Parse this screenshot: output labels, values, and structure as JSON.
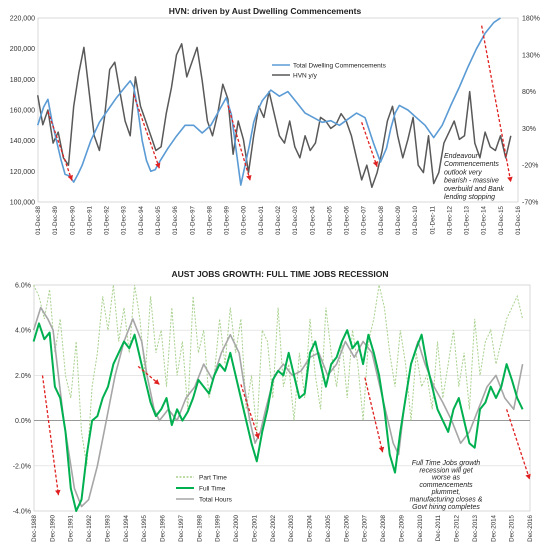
{
  "colors": {
    "dwelling": "#5b9bd5",
    "hvn": "#595959",
    "part_time": "#a9d18e",
    "full_time": "#00b050",
    "total_hours": "#a6a6a6",
    "arrow": "#e02020"
  },
  "chart_data": [
    {
      "type": "line",
      "title": "HVN: driven by Aust Dwelling Commencements",
      "ylim": [
        100000,
        220000
      ],
      "y_ticks": [
        "100,000",
        "120,000",
        "140,000",
        "160,000",
        "180,000",
        "200,000",
        "220,000"
      ],
      "y2lim": [
        -70,
        180
      ],
      "y2_ticks": [
        "-70%",
        "-20%",
        "30%",
        "80%",
        "130%",
        "180%"
      ],
      "x_ticks": [
        "01-Dec-88",
        "01-Dec-89",
        "01-Dec-90",
        "01-Dec-91",
        "01-Dec-92",
        "01-Dec-93",
        "01-Dec-94",
        "01-Dec-95",
        "01-Dec-96",
        "01-Dec-97",
        "01-Dec-98",
        "01-Dec-99",
        "01-Dec-00",
        "01-Dec-01",
        "01-Dec-02",
        "01-Dec-03",
        "01-Dec-04",
        "01-Dec-05",
        "01-Dec-06",
        "01-Dec-07",
        "01-Dec-08",
        "01-Dec-09",
        "01-Dec-10",
        "01-Dec-11",
        "01-Dec-12",
        "01-Dec-13",
        "01-Dec-14",
        "01-Dec-15",
        "01-Dec-16"
      ],
      "x_range": [
        1988.92,
        1988.92,
        2016.92
      ],
      "legend": "top-center",
      "series": [
        {
          "name": "Total Dwelling Commencements",
          "axis": "left",
          "x": [
            1988.9,
            1989.25,
            1989.5,
            1989.75,
            1990.0,
            1990.25,
            1990.5,
            1990.75,
            1991.0,
            1991.25,
            1991.5,
            1991.75,
            1992.0,
            1992.5,
            1993.0,
            1993.5,
            1994.0,
            1994.3,
            1994.5,
            1994.75,
            1995.0,
            1995.25,
            1995.5,
            1995.75,
            1996.0,
            1996.5,
            1997.0,
            1997.5,
            1998.0,
            1998.5,
            1999.0,
            1999.5,
            1999.9,
            2000.2,
            2000.5,
            2000.75,
            2001.0,
            2001.25,
            2001.5,
            2001.75,
            2002.0,
            2002.5,
            2003.0,
            2003.5,
            2004.0,
            2004.5,
            2005.0,
            2005.5,
            2006.0,
            2006.5,
            2007.0,
            2007.5,
            2008.0,
            2008.5,
            2008.9,
            2009.25,
            2009.5,
            2009.75,
            2010.0,
            2010.5,
            2011.0,
            2011.5,
            2012.0,
            2012.5,
            2013.0,
            2013.5,
            2014.0,
            2014.5,
            2015.0,
            2015.5,
            2015.9
          ],
          "values": [
            150000,
            162000,
            167000,
            152000,
            140000,
            128000,
            118000,
            117000,
            113000,
            118000,
            124000,
            132000,
            140000,
            152000,
            160000,
            168000,
            175000,
            179000,
            175000,
            160000,
            140000,
            127000,
            120000,
            121000,
            126000,
            135000,
            143000,
            150000,
            150000,
            145000,
            150000,
            160000,
            168000,
            157000,
            132000,
            111000,
            124000,
            137000,
            152000,
            160000,
            166000,
            173000,
            169000,
            172000,
            165000,
            158000,
            155000,
            152000,
            153000,
            150000,
            154000,
            158000,
            155000,
            138000,
            126000,
            135000,
            148000,
            158000,
            163000,
            160000,
            155000,
            150000,
            142000,
            150000,
            163000,
            175000,
            188000,
            200000,
            210000,
            217000,
            220000
          ]
        },
        {
          "name": "HVN y/y",
          "axis": "right",
          "x": [
            1988.9,
            1989.2,
            1989.5,
            1989.8,
            1990.1,
            1990.4,
            1990.7,
            1991.0,
            1991.3,
            1991.6,
            1991.9,
            1992.2,
            1992.5,
            1992.8,
            1993.1,
            1993.4,
            1993.7,
            1994.0,
            1994.3,
            1994.6,
            1994.9,
            1995.2,
            1995.5,
            1995.8,
            1996.1,
            1996.4,
            1996.7,
            1997.0,
            1997.3,
            1997.6,
            1997.9,
            1998.2,
            1998.5,
            1998.8,
            1999.1,
            1999.4,
            1999.7,
            2000.0,
            2000.3,
            2000.6,
            2000.9,
            2001.2,
            2001.5,
            2001.8,
            2002.1,
            2002.4,
            2002.7,
            2003.0,
            2003.3,
            2003.6,
            2003.9,
            2004.2,
            2004.5,
            2004.8,
            2005.1,
            2005.4,
            2005.7,
            2006.0,
            2006.3,
            2006.6,
            2006.9,
            2007.2,
            2007.5,
            2007.8,
            2008.1,
            2008.4,
            2008.7,
            2009.0,
            2009.3,
            2009.6,
            2009.9,
            2010.2,
            2010.5,
            2010.8,
            2011.1,
            2011.4,
            2011.7,
            2012.0,
            2012.3,
            2012.6,
            2012.9,
            2013.2,
            2013.5,
            2013.8,
            2014.1,
            2014.4,
            2014.7,
            2015.0,
            2015.3,
            2015.6,
            2015.9,
            2016.2,
            2016.5
          ],
          "values": [
            75,
            35,
            55,
            10,
            25,
            -10,
            -20,
            60,
            105,
            140,
            80,
            20,
            0,
            45,
            110,
            120,
            80,
            40,
            20,
            100,
            60,
            40,
            20,
            0,
            5,
            50,
            85,
            130,
            145,
            100,
            120,
            140,
            95,
            40,
            20,
            50,
            90,
            70,
            -5,
            40,
            15,
            -30,
            20,
            60,
            45,
            80,
            50,
            20,
            10,
            40,
            5,
            -10,
            20,
            0,
            10,
            45,
            40,
            30,
            35,
            50,
            40,
            20,
            -10,
            -40,
            -20,
            -50,
            -30,
            0,
            40,
            60,
            20,
            -10,
            15,
            45,
            -20,
            -30,
            20,
            -45,
            -30,
            10,
            25,
            40,
            15,
            20,
            80,
            10,
            -10,
            25,
            5,
            0,
            20,
            -10,
            20
          ]
        }
      ],
      "annotations": [
        {
          "lines": [
            "Endeavour",
            "Commencements",
            "outlook very",
            "bearish - massive",
            "overbuild and Bank",
            "lending stopping"
          ]
        }
      ]
    },
    {
      "type": "line",
      "title": "AUST JOBS GROWTH: FULL TIME JOBS RECESSION",
      "ylim": [
        -4.0,
        6.0
      ],
      "y_ticks": [
        "-4.0%",
        "-2.0%",
        "0.0%",
        "2.0%",
        "4.0%",
        "6.0%"
      ],
      "x_ticks": [
        "Dec-1988",
        "Dec-1990",
        "Dec-1991",
        "Dec-1992",
        "Dec-1993",
        "Dec-1994",
        "Dec-1995",
        "Dec-1996",
        "Dec-1997",
        "Dec-1998",
        "Dec-1999",
        "Dec-2000",
        "Dec-2001",
        "Dec-2002",
        "Dec-2003",
        "Dec-2004",
        "Dec-2005",
        "Dec-2006",
        "Dec-2007",
        "Dec-2008",
        "Dec-2009",
        "Dec-2010",
        "Dec-2011",
        "Dec-2012",
        "Dec-2013",
        "Dec-2014",
        "Dec-2015",
        "Dec-2016"
      ],
      "x_range": [
        1988.92,
        2016.92
      ],
      "legend": "bottom-left",
      "series": [
        {
          "name": "Part Time",
          "x": [
            1988.9,
            1989.2,
            1989.5,
            1989.8,
            1990.1,
            1990.4,
            1990.7,
            1991.0,
            1991.3,
            1991.6,
            1991.9,
            1992.2,
            1992.5,
            1992.8,
            1993.1,
            1993.4,
            1993.7,
            1994.0,
            1994.3,
            1994.6,
            1994.9,
            1995.2,
            1995.5,
            1995.8,
            1996.1,
            1996.4,
            1996.7,
            1997.0,
            1997.3,
            1997.6,
            1997.9,
            1998.2,
            1998.5,
            1998.8,
            1999.1,
            1999.4,
            1999.7,
            2000.0,
            2000.3,
            2000.6,
            2000.9,
            2001.2,
            2001.5,
            2001.8,
            2002.1,
            2002.4,
            2002.7,
            2003.0,
            2003.3,
            2003.6,
            2003.9,
            2004.2,
            2004.5,
            2004.8,
            2005.1,
            2005.4,
            2005.7,
            2006.0,
            2006.3,
            2006.6,
            2006.9,
            2007.2,
            2007.5,
            2007.8,
            2008.1,
            2008.4,
            2008.7,
            2009.0,
            2009.3,
            2009.6,
            2009.9,
            2010.2,
            2010.5,
            2010.8,
            2011.1,
            2011.4,
            2011.7,
            2012.0,
            2012.3,
            2012.6,
            2012.9,
            2013.2,
            2013.5,
            2013.8,
            2014.1,
            2014.4,
            2014.7,
            2015.0,
            2015.3,
            2015.6,
            2015.9,
            2016.2,
            2016.5
          ],
          "values": [
            6.0,
            5.5,
            4.5,
            5.8,
            3.0,
            4.5,
            2.0,
            1.0,
            3.5,
            -0.5,
            -2.0,
            1.5,
            3.0,
            5.5,
            4.0,
            6.0,
            3.5,
            5.0,
            3.0,
            6.0,
            4.5,
            2.0,
            5.5,
            3.0,
            4.0,
            1.5,
            5.0,
            2.0,
            3.5,
            0.5,
            5.5,
            3.0,
            4.0,
            1.0,
            2.0,
            4.5,
            2.5,
            5.0,
            3.0,
            4.5,
            0.5,
            2.0,
            -0.5,
            4.0,
            3.5,
            1.0,
            5.0,
            1.5,
            2.5,
            0.0,
            3.0,
            1.0,
            4.5,
            2.0,
            0.5,
            5.0,
            3.0,
            1.5,
            3.5,
            1.0,
            4.0,
            2.5,
            0.0,
            3.5,
            4.5,
            6.0,
            5.0,
            3.0,
            1.5,
            4.0,
            2.5,
            0.0,
            3.0,
            1.5,
            2.0,
            0.5,
            3.5,
            1.0,
            2.5,
            4.0,
            1.5,
            3.0,
            0.5,
            4.5,
            2.0,
            3.5,
            4.0,
            2.5,
            3.5,
            4.5,
            5.0,
            5.5,
            4.5
          ]
        },
        {
          "name": "Full Time",
          "x": [
            1988.9,
            1989.2,
            1989.5,
            1989.8,
            1990.1,
            1990.4,
            1990.7,
            1991.0,
            1991.3,
            1991.6,
            1991.9,
            1992.2,
            1992.5,
            1992.8,
            1993.1,
            1993.4,
            1993.7,
            1994.0,
            1994.3,
            1994.6,
            1994.9,
            1995.2,
            1995.5,
            1995.8,
            1996.1,
            1996.4,
            1996.7,
            1997.0,
            1997.3,
            1997.6,
            1997.9,
            1998.2,
            1998.5,
            1998.8,
            1999.1,
            1999.4,
            1999.7,
            2000.0,
            2000.3,
            2000.6,
            2000.9,
            2001.2,
            2001.5,
            2001.8,
            2002.1,
            2002.4,
            2002.7,
            2003.0,
            2003.3,
            2003.6,
            2003.9,
            2004.2,
            2004.5,
            2004.8,
            2005.1,
            2005.4,
            2005.7,
            2006.0,
            2006.3,
            2006.6,
            2006.9,
            2007.2,
            2007.5,
            2007.8,
            2008.1,
            2008.4,
            2008.7,
            2009.0,
            2009.3,
            2009.6,
            2009.9,
            2010.2,
            2010.5,
            2010.8,
            2011.1,
            2011.4,
            2011.7,
            2012.0,
            2012.3,
            2012.6,
            2012.9,
            2013.2,
            2013.5,
            2013.8,
            2014.1,
            2014.4,
            2014.7,
            2015.0,
            2015.3,
            2015.6,
            2015.9,
            2016.2,
            2016.5
          ],
          "values": [
            3.5,
            4.3,
            3.6,
            3.9,
            1.5,
            1.0,
            -0.5,
            -3.0,
            -4.0,
            -3.5,
            -1.5,
            0.0,
            0.2,
            1.0,
            1.5,
            2.5,
            3.0,
            3.5,
            3.2,
            3.8,
            2.8,
            1.8,
            0.8,
            0.2,
            0.5,
            1.0,
            -0.2,
            0.5,
            0.0,
            0.4,
            1.0,
            1.8,
            1.5,
            1.2,
            2.0,
            2.5,
            2.2,
            3.0,
            2.0,
            1.0,
            0.0,
            -1.0,
            -1.8,
            -0.5,
            0.5,
            1.8,
            2.2,
            2.0,
            3.0,
            2.0,
            1.0,
            1.2,
            3.0,
            3.5,
            2.5,
            1.5,
            2.5,
            2.8,
            3.5,
            4.0,
            3.2,
            3.5,
            2.5,
            3.8,
            3.0,
            2.0,
            0.5,
            -1.5,
            -2.3,
            -0.5,
            1.0,
            2.5,
            3.2,
            3.8,
            2.5,
            1.5,
            0.5,
            0.0,
            -0.5,
            0.5,
            1.0,
            0.0,
            -1.0,
            -1.2,
            0.5,
            0.8,
            1.5,
            1.0,
            1.5,
            2.5,
            1.8,
            1.0,
            0.5
          ]
        },
        {
          "name": "Total Hours",
          "x": [
            1988.9,
            1989.3,
            1989.7,
            1990.0,
            1990.3,
            1990.6,
            1990.9,
            1991.2,
            1991.6,
            1992.0,
            1992.5,
            1993.0,
            1993.5,
            1994.0,
            1994.5,
            1995.0,
            1995.3,
            1995.7,
            1996.0,
            1996.5,
            1997.0,
            1997.5,
            1998.0,
            1998.5,
            1999.0,
            1999.5,
            2000.0,
            2000.5,
            2000.8,
            2001.1,
            2001.4,
            2001.7,
            2002.0,
            2002.5,
            2003.0,
            2003.5,
            2004.0,
            2004.5,
            2005.0,
            2005.5,
            2006.0,
            2006.5,
            2007.0,
            2007.5,
            2008.0,
            2008.3,
            2008.6,
            2008.9,
            2009.2,
            2009.5,
            2009.8,
            2010.2,
            2010.6,
            2011.0,
            2011.5,
            2012.0,
            2012.5,
            2013.0,
            2013.5,
            2014.0,
            2014.5,
            2015.0,
            2015.5,
            2016.0,
            2016.5
          ],
          "values": [
            4.0,
            5.0,
            4.5,
            4.0,
            2.0,
            0.0,
            -1.5,
            -3.0,
            -3.8,
            -3.5,
            -2.0,
            0.0,
            2.0,
            3.5,
            4.5,
            3.5,
            2.0,
            0.5,
            0.0,
            0.5,
            0.0,
            1.0,
            1.5,
            2.5,
            1.8,
            3.0,
            3.8,
            3.0,
            1.5,
            0.0,
            -1.0,
            -0.5,
            0.5,
            2.0,
            2.5,
            2.0,
            2.2,
            2.8,
            3.0,
            2.0,
            2.5,
            3.5,
            2.8,
            3.5,
            3.0,
            2.0,
            1.0,
            0.0,
            -1.0,
            -1.5,
            0.5,
            2.5,
            3.5,
            2.5,
            1.5,
            0.8,
            0.0,
            -1.0,
            -0.5,
            0.5,
            1.5,
            2.0,
            1.0,
            0.5,
            2.5
          ]
        }
      ],
      "annotations": [
        {
          "lines": [
            "Full Time Jobs growth",
            "recession will get",
            "worse as",
            "commencements",
            "plummet,",
            "manufacturing closes &",
            "Govt hiring completes"
          ]
        }
      ]
    }
  ]
}
